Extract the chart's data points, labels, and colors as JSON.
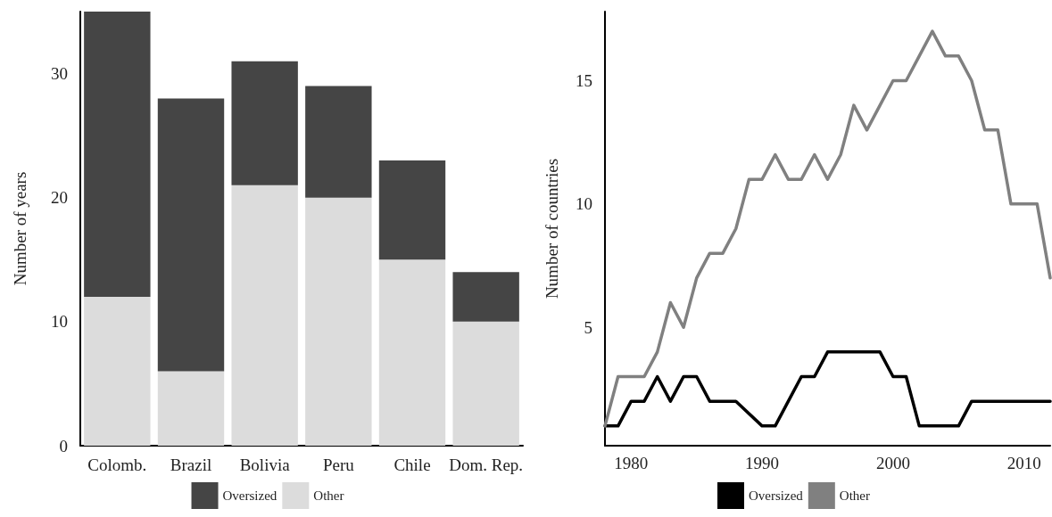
{
  "chart_data": [
    {
      "type": "bar",
      "ylabel": "Number of years",
      "categories": [
        "Colomb.",
        "Brazil",
        "Bolivia",
        "Peru",
        "Chile",
        "Dom. Rep."
      ],
      "stacked": true,
      "series": [
        {
          "name": "Other",
          "color": "#dcdcdc",
          "values": [
            12,
            6,
            21,
            20,
            15,
            10
          ]
        },
        {
          "name": "Oversized",
          "color": "#454545",
          "values": [
            23,
            22,
            10,
            9,
            8,
            4
          ]
        }
      ],
      "ylim": [
        0,
        35
      ],
      "yticks": [
        0,
        10,
        20,
        30
      ],
      "grid": false,
      "legend": "bottom"
    },
    {
      "type": "line",
      "ylabel": "Number of countries",
      "x": [
        1978,
        1979,
        1980,
        1981,
        1982,
        1983,
        1984,
        1985,
        1986,
        1987,
        1988,
        1989,
        1990,
        1991,
        1992,
        1993,
        1994,
        1995,
        1996,
        1997,
        1998,
        1999,
        2000,
        2001,
        2002,
        2003,
        2004,
        2005,
        2006,
        2007,
        2008,
        2009,
        2010,
        2011,
        2012
      ],
      "series": [
        {
          "name": "Oversized",
          "color": "#000000",
          "x": [
            1978,
            1979,
            1980,
            1981,
            1982,
            1983,
            1984,
            1985,
            1986,
            1987,
            1988,
            1990,
            1991,
            1992,
            1993,
            1994,
            1995,
            1996,
            1997,
            1998,
            1999,
            2000,
            2001,
            2002,
            2003,
            2004,
            2005,
            2006,
            2007,
            2008,
            2009,
            2010,
            2011,
            2012
          ],
          "values": [
            1,
            1,
            2,
            2,
            3,
            2,
            3,
            3,
            2,
            2,
            2,
            1,
            1,
            2,
            3,
            3,
            4,
            4,
            4,
            4,
            4,
            3,
            3,
            1,
            1,
            1,
            1,
            2,
            2,
            2,
            2,
            2,
            2,
            2
          ]
        },
        {
          "name": "Other",
          "color": "#808080",
          "values": [
            1,
            3,
            3,
            3,
            4,
            6,
            5,
            7,
            8,
            8,
            9,
            11,
            11,
            12,
            11,
            11,
            12,
            11,
            12,
            14,
            13,
            14,
            15,
            15,
            16,
            17,
            16,
            16,
            15,
            13,
            13,
            10,
            10,
            10,
            7
          ]
        }
      ],
      "xlim": [
        1978,
        2012
      ],
      "xticks": [
        1980,
        1990,
        2000,
        2010
      ],
      "ylim": [
        0.2,
        17.8
      ],
      "yticks": [
        5,
        10,
        15
      ],
      "grid": false,
      "legend": "bottom",
      "marker": "none",
      "line_style": "solid"
    }
  ]
}
